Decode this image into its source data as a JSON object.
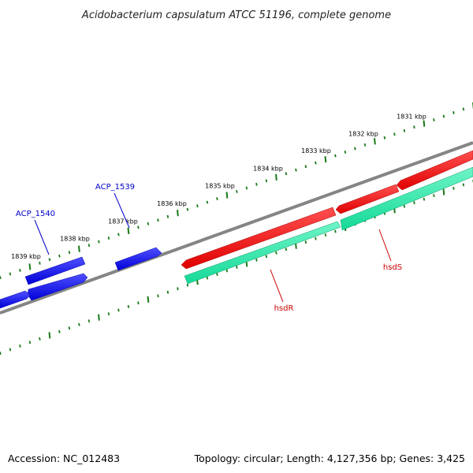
{
  "title": "Acidobacterium capsulatum ATCC 51196, complete genome",
  "footer": {
    "accession": "Accession: NC_012483",
    "summary": "Topology: circular; Length: 4,127,356 bp; Genes: 3,425"
  },
  "colors": {
    "backbone": "#808080",
    "tick": "#1a7a1a",
    "forward_gene": "#0000e0",
    "reverse_gene": "#0000e0",
    "hsd_forward": "#ee0000",
    "hsd_reverse": "#1de9a8",
    "label_blue": "#0000cc",
    "label_red": "#cc0000"
  },
  "ticks": [
    {
      "label": "1831 kbp"
    },
    {
      "label": "1832 kbp"
    },
    {
      "label": "1833 kbp"
    },
    {
      "label": "1834 kbp"
    },
    {
      "label": "1835 kbp"
    },
    {
      "label": "1836 kbp"
    },
    {
      "label": "1837 kbp"
    },
    {
      "label": "1838 kbp"
    },
    {
      "label": "1839 kbp"
    }
  ],
  "gene_labels": [
    {
      "name": "ACP_1540"
    },
    {
      "name": "ACP_1539"
    },
    {
      "name": "hsdR"
    },
    {
      "name": "hsdS"
    }
  ]
}
